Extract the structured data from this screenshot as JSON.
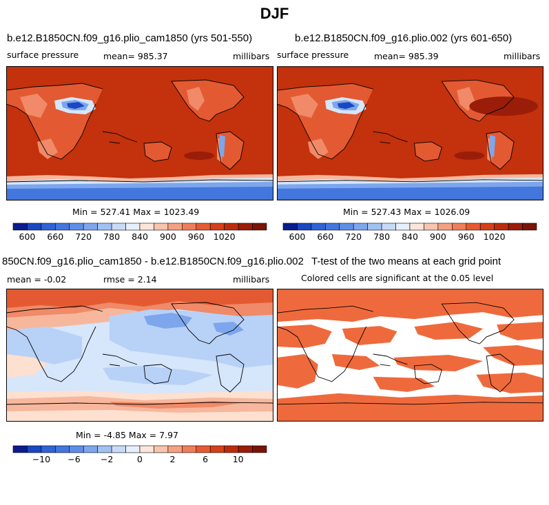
{
  "title": "DJF",
  "panels": {
    "p1": {
      "title": "b.e12.B1850CN.f09_g16.plio_cam1850 (yrs 501-550)",
      "left_label": "surface pressure",
      "center_label": "mean=  985.37",
      "right_label": "millibars",
      "stats": "Min = 527.41 Max = 1023.49"
    },
    "p2": {
      "title": "b.e12.B1850CN.f09_g16.plio.002 (yrs 601-650)",
      "left_label": "surface pressure",
      "center_label": "mean=  985.39",
      "right_label": "millibars",
      "stats": "Min = 527.43 Max = 1026.09"
    },
    "p3": {
      "title": "850CN.f09_g16.plio_cam1850 - b.e12.B1850CN.f09_g16.plio.002",
      "left_label": "mean =   -0.02",
      "center_label": "rmse =    2.14",
      "right_label": "millibars",
      "stats": "Min =  -4.85 Max =   7.97"
    },
    "p4": {
      "title": "T-test of the two means at each grid point",
      "subtitle": "Colored cells are significant at the 0.05 level"
    }
  },
  "colors": {
    "dark_red": "#9a1d09",
    "red": "#c3310d",
    "orange_red": "#e35a32",
    "salmon": "#f08a68",
    "light_salmon": "#f7b79d",
    "peach": "#fde0d0",
    "pale_blue": "#d6e6fb",
    "light_blue": "#b8d1f7",
    "mid_blue": "#7da6ec",
    "blue": "#4477dd",
    "deep_blue": "#1a48c2",
    "navy": "#0b1c8f",
    "sig_orange": "#ee6a3d",
    "frame": "#000000"
  },
  "chart_data": [
    {
      "type": "heatmap",
      "id": "abs_colorbar",
      "variable": "surface pressure",
      "units": "millibars",
      "level_ticks": [
        600,
        660,
        720,
        780,
        840,
        900,
        960,
        1020
      ],
      "tick_labels": [
        "600",
        "660",
        "720",
        "780",
        "840",
        "900",
        "960",
        "1020"
      ],
      "palette": [
        "#0b1c8f",
        "#1a48c2",
        "#2f63d6",
        "#4477dd",
        "#5e8ee6",
        "#7da6ec",
        "#a2c1f3",
        "#c7dbf8",
        "#e6f0fd",
        "#fde6d9",
        "#f8c4ad",
        "#f4a183",
        "#ef7e5a",
        "#e65a32",
        "#d6401b",
        "#bc2c0c",
        "#9a1d09",
        "#7a1406"
      ]
    },
    {
      "type": "heatmap",
      "id": "diff_colorbar",
      "units": "millibars",
      "level_ticks": [
        -10,
        -6,
        -2,
        0,
        2,
        6,
        10
      ],
      "tick_labels": [
        "−10",
        "−6",
        "−2",
        "0",
        "2",
        "6",
        "10"
      ],
      "palette": [
        "#0b1c8f",
        "#1a48c2",
        "#2f63d6",
        "#4477dd",
        "#5e8ee6",
        "#7da6ec",
        "#a2c1f3",
        "#c7dbf8",
        "#e6f0fd",
        "#fde6d9",
        "#f8c4ad",
        "#f4a183",
        "#ef7e5a",
        "#e65a32",
        "#d6401b",
        "#bc2c0c",
        "#9a1d09",
        "#7a1406"
      ]
    }
  ]
}
